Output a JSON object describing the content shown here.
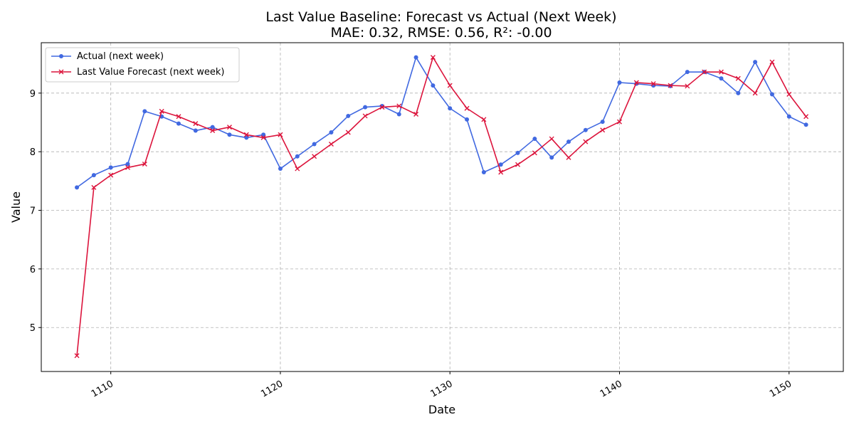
{
  "chart_data": {
    "type": "line",
    "title": "Last Value Baseline: Forecast vs Actual (Next Week)",
    "subtitle": "MAE: 0.32, RMSE: 0.56, R²: -0.00",
    "xlabel": "Date",
    "ylabel": "Value",
    "xlim": [
      1105.9,
      1153.2
    ],
    "ylim": [
      4.25,
      9.86
    ],
    "x_ticks": [
      1110,
      1120,
      1130,
      1140,
      1150
    ],
    "y_ticks": [
      5,
      6,
      7,
      8,
      9
    ],
    "grid": true,
    "legend_position": "top-left",
    "x": [
      1108,
      1109,
      1110,
      1111,
      1112,
      1113,
      1114,
      1115,
      1116,
      1117,
      1118,
      1119,
      1120,
      1121,
      1122,
      1123,
      1124,
      1125,
      1126,
      1127,
      1128,
      1129,
      1130,
      1131,
      1132,
      1133,
      1134,
      1135,
      1136,
      1137,
      1138,
      1139,
      1140,
      1141,
      1142,
      1143,
      1144,
      1145,
      1146,
      1147,
      1148,
      1149,
      1150,
      1151
    ],
    "series": [
      {
        "name": "Actual (next week)",
        "color": "#4169e1",
        "marker": "circle",
        "values": [
          7.39,
          7.6,
          7.73,
          7.79,
          8.69,
          8.6,
          8.48,
          8.36,
          8.42,
          8.29,
          8.24,
          8.29,
          7.71,
          7.92,
          8.13,
          8.33,
          8.61,
          8.76,
          8.78,
          8.64,
          9.61,
          9.13,
          8.74,
          8.55,
          7.65,
          7.78,
          7.98,
          8.22,
          7.9,
          8.17,
          8.37,
          8.51,
          9.18,
          9.16,
          9.13,
          9.12,
          9.36,
          9.36,
          9.25,
          9.0,
          9.53,
          8.98,
          8.6,
          8.46
        ]
      },
      {
        "name": "Last Value Forecast (next week)",
        "color": "#dc143c",
        "marker": "x",
        "values": [
          4.52,
          7.39,
          7.6,
          7.73,
          7.79,
          8.69,
          8.6,
          8.48,
          8.36,
          8.42,
          8.29,
          8.24,
          8.29,
          7.71,
          7.92,
          8.13,
          8.33,
          8.61,
          8.76,
          8.78,
          8.64,
          9.61,
          9.13,
          8.74,
          8.55,
          7.65,
          7.78,
          7.98,
          8.22,
          7.9,
          8.17,
          8.37,
          8.51,
          9.18,
          9.16,
          9.13,
          9.12,
          9.36,
          9.36,
          9.25,
          9.0,
          9.53,
          8.98,
          8.6
        ]
      }
    ]
  }
}
